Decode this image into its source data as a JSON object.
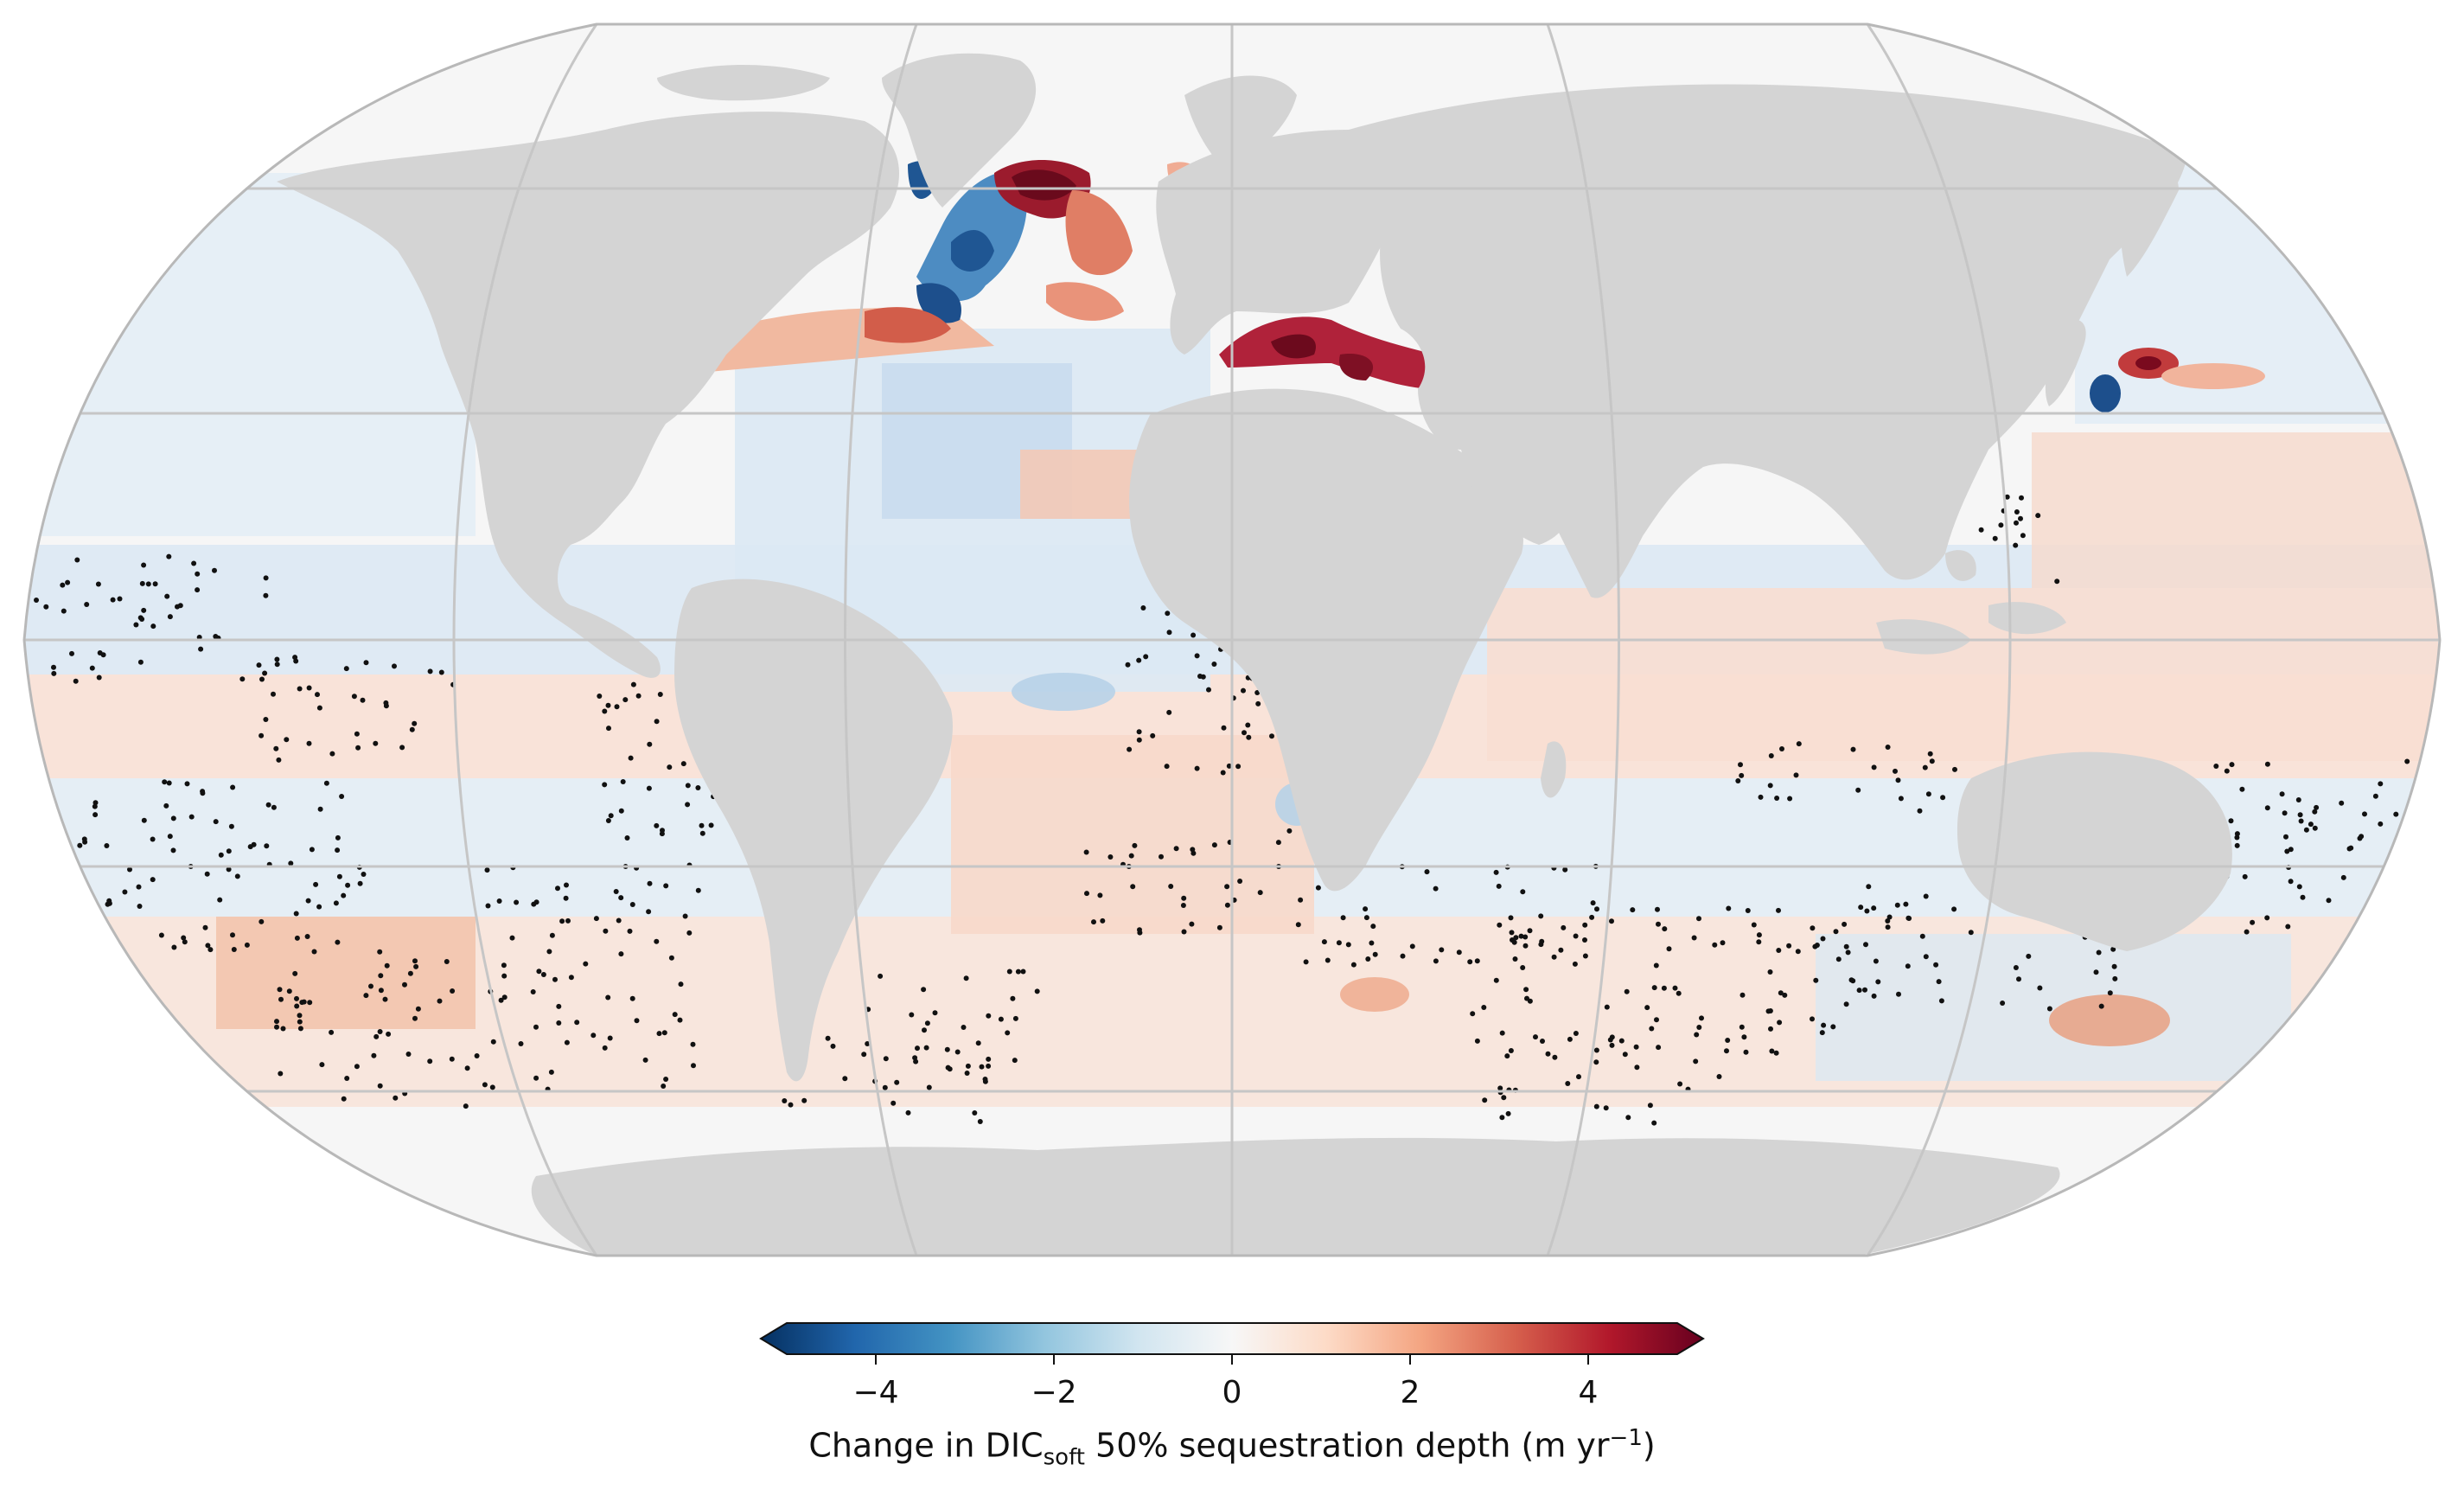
{
  "map": {
    "projection": "Robinson",
    "ocean_base_color": "#f6f6f6",
    "land_color": "#d4d4d4",
    "graticule_color": "#c8c8c8",
    "outline_color": "#bbbbbb"
  },
  "colorbar": {
    "colormap": "RdBu_r",
    "range": [
      -5,
      5
    ],
    "extend": "both",
    "ticks": [
      {
        "value": -4,
        "label": "−4"
      },
      {
        "value": -2,
        "label": "−2"
      },
      {
        "value": 0,
        "label": "0"
      },
      {
        "value": 2,
        "label": "2"
      },
      {
        "value": 4,
        "label": "4"
      }
    ],
    "label_prefix": "Change in DIC",
    "label_subscript": "soft",
    "label_middle": " 50% sequestration depth (m yr",
    "label_superscript": "−1",
    "label_suffix": ")",
    "colors": [
      "#053061",
      "#2166ac",
      "#4393c3",
      "#92c5de",
      "#d1e5f0",
      "#f7f7f7",
      "#fddbc7",
      "#f4a582",
      "#d6604d",
      "#b2182b",
      "#67001f"
    ]
  },
  "field_colors": {
    "strong_positive": "#7a0a1e",
    "positive": "#d6604d",
    "weak_positive": "#f7dccf",
    "weak_negative": "#dce9f3",
    "negative": "#6aa3cc",
    "strong_negative": "#1d4f8c"
  }
}
